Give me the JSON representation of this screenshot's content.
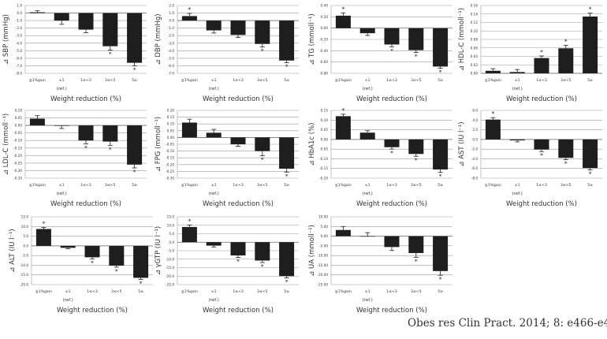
{
  "citation": "Obes res Clin Pract. 2014; 8: e466-e475",
  "chart_data": [
    {
      "type": "bar",
      "ylabel": "⊿ SBP (mmHg)",
      "xlabel": "Weight reduction (%)",
      "categories": [
        "≧1%gain",
        "±1",
        "1≤<3",
        "3≤<5",
        "5≥"
      ],
      "reference_note": "(ref.)",
      "ylim": [
        -8,
        1
      ],
      "ystep": 1,
      "decimals": 1,
      "values": [
        0.1,
        -1.0,
        -2.2,
        -4.4,
        -6.6
      ],
      "errors": [
        0.2,
        0.5,
        0.4,
        0.5,
        0.4
      ],
      "significant": [
        false,
        false,
        false,
        true,
        true
      ],
      "grid": true
    },
    {
      "type": "bar",
      "ylabel": "⊿ DBP (mmHg)",
      "xlabel": "Weight reduction (%)",
      "categories": [
        "≧1%gain",
        "±1",
        "1≤<3",
        "3≤<5",
        "5≥"
      ],
      "reference_note": "(ref.)",
      "ylim": [
        -7,
        2
      ],
      "ystep": 1,
      "decimals": 1,
      "values": [
        0.6,
        -1.3,
        -1.9,
        -3.1,
        -5.3
      ],
      "errors": [
        0.35,
        0.35,
        0.35,
        0.4,
        0.3
      ],
      "significant": [
        true,
        false,
        false,
        true,
        true
      ],
      "grid": true
    },
    {
      "type": "bar",
      "ylabel": "⊿ TG (mmoll⁻¹)",
      "xlabel": "Weight reduction (%)",
      "categories": [
        "≧1%gain",
        "±1",
        "1≤<3",
        "3≤<5",
        "5≥"
      ],
      "reference_note": "(ref.)",
      "ylim": [
        -0.8,
        0.4
      ],
      "ystep": 0.2,
      "decimals": 2,
      "values": [
        0.22,
        -0.09,
        -0.29,
        -0.39,
        -0.68
      ],
      "errors": [
        0.05,
        0.04,
        0.04,
        0.04,
        0.03
      ],
      "significant": [
        true,
        false,
        true,
        true,
        true
      ],
      "grid": true
    },
    {
      "type": "bar",
      "ylabel": "⊿ HDL-C (mmoll⁻¹)",
      "xlabel": "Weight reduction (%)",
      "categories": [
        "≧1%gain",
        "±1",
        "1≤<3",
        "3≤<5",
        "5≥"
      ],
      "reference_note": "(ref.)",
      "ylim": [
        0,
        0.16
      ],
      "ystep": 0.02,
      "decimals": 2,
      "values": [
        0.006,
        0.003,
        0.036,
        0.059,
        0.134
      ],
      "errors": [
        0.005,
        0.006,
        0.005,
        0.007,
        0.008
      ],
      "significant": [
        false,
        false,
        true,
        true,
        true
      ],
      "grid": true
    },
    {
      "type": "bar",
      "ylabel": "⊿ LDL-C (mmoll⁻¹)",
      "xlabel": "Weight reduction (%)",
      "categories": [
        "≧1%gain",
        "±1",
        "1≤<3",
        "3≤<5",
        "5≥"
      ],
      "reference_note": "(ref.)",
      "ylim": [
        -0.35,
        0.1
      ],
      "ystep": 0.05,
      "decimals": 2,
      "values": [
        0.045,
        -0.003,
        -0.1,
        -0.107,
        -0.26
      ],
      "errors": [
        0.02,
        0.017,
        0.022,
        0.025,
        0.022
      ],
      "significant": [
        false,
        false,
        true,
        true,
        true
      ],
      "grid": true
    },
    {
      "type": "bar",
      "ylabel": "⊿ FPG (mmoll⁻¹)",
      "xlabel": "Weight reduction (%)",
      "categories": [
        "≧1%gain",
        "±1",
        "1≤<3",
        "3≤<5",
        "5≥"
      ],
      "reference_note": "(ref.)",
      "ylim": [
        -0.3,
        0.2
      ],
      "ystep": 0.05,
      "decimals": 2,
      "values": [
        0.11,
        0.035,
        -0.05,
        -0.1,
        -0.23
      ],
      "errors": [
        0.025,
        0.025,
        0.015,
        0.035,
        0.025
      ],
      "significant": [
        false,
        false,
        false,
        true,
        true
      ],
      "grid": true
    },
    {
      "type": "bar",
      "ylabel": "⊿ HbA1c (%)",
      "xlabel": "Weight reduction (%)",
      "categories": [
        "≧1%gain",
        "±1",
        "1≤<3",
        "3≤<5",
        "5≥"
      ],
      "reference_note": "(ref.)",
      "ylim": [
        -0.2,
        0.15
      ],
      "ystep": 0.05,
      "decimals": 2,
      "values": [
        0.12,
        0.035,
        -0.04,
        -0.075,
        -0.155
      ],
      "errors": [
        0.01,
        0.01,
        0.01,
        0.012,
        0.015
      ],
      "significant": [
        true,
        false,
        true,
        true,
        true
      ],
      "grid": true
    },
    {
      "type": "bar",
      "ylabel": "⊿ AST (IU l⁻¹)",
      "xlabel": "Weight reduction (%)",
      "categories": [
        "≧1%gain",
        "±1",
        "1≤<3",
        "3≤<5",
        "5≥"
      ],
      "reference_note": "(ref.)",
      "ylim": [
        -8,
        6
      ],
      "ystep": 2,
      "decimals": 1,
      "values": [
        4.1,
        -0.2,
        -2.1,
        -3.8,
        -5.9
      ],
      "errors": [
        0.4,
        0.3,
        0.4,
        0.4,
        0.4
      ],
      "significant": [
        true,
        false,
        true,
        true,
        true
      ],
      "grid": true
    },
    {
      "type": "bar",
      "ylabel": "⊿ ALT (IU l⁻¹)",
      "xlabel": "Weight reduction (%)",
      "categories": [
        "≧1%gain",
        "±1",
        "1≤<3",
        "3≤<5",
        "5≥"
      ],
      "reference_note": "(ref.)",
      "ylim": [
        -20,
        15
      ],
      "ystep": 5,
      "decimals": 1,
      "values": [
        8.7,
        -1.0,
        -5.9,
        -10.2,
        -16.5
      ],
      "errors": [
        0.8,
        0.5,
        0.8,
        0.8,
        0.8
      ],
      "significant": [
        true,
        false,
        true,
        true,
        true
      ],
      "grid": true
    },
    {
      "type": "bar",
      "ylabel": "⊿ γGTP (IU l⁻¹)",
      "xlabel": "Weight reduction (%)",
      "categories": [
        "≧1%gain",
        "±1",
        "1≤<3",
        "3≤<5",
        "5≥"
      ],
      "reference_note": "(ref.)",
      "ylim": [
        -25,
        15
      ],
      "ystep": 5,
      "decimals": 1,
      "values": [
        9.0,
        -2.0,
        -7.8,
        -10.8,
        -20.0
      ],
      "errors": [
        1.2,
        0.8,
        1.2,
        1.2,
        1.0
      ],
      "significant": [
        true,
        false,
        true,
        true,
        true
      ],
      "grid": true
    },
    {
      "type": "bar",
      "ylabel": "⊿ UA (mmoll⁻¹)",
      "xlabel": "Weight reduction (%)",
      "categories": [
        "≧1%gain",
        "±1",
        "1≤<3",
        "3≤<5",
        "5≥"
      ],
      "reference_note": "(ref.)",
      "ylim": [
        -25,
        10
      ],
      "ystep": 5,
      "decimals": 2,
      "values": [
        3.2,
        0.0,
        -5.6,
        -8.7,
        -18.0
      ],
      "errors": [
        1.8,
        1.8,
        1.8,
        2.2,
        2.2
      ],
      "significant": [
        false,
        false,
        false,
        true,
        true
      ],
      "grid": true
    }
  ],
  "significance_marker": "*",
  "colors": {
    "bar": "#1e1e1e",
    "grid": "#9a9a9a",
    "text": "#333333"
  }
}
